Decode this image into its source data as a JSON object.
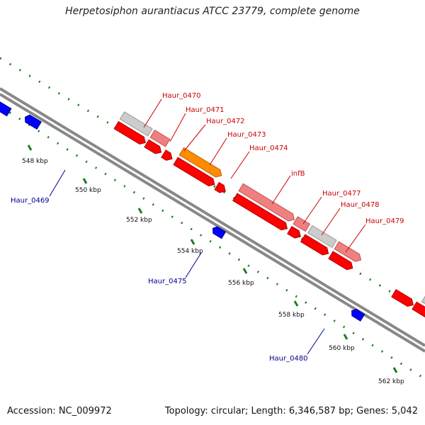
{
  "title": "Herpetosiphon aurantiacus ATCC 23779, complete genome",
  "accession": "Accession: NC_009972",
  "topology": "Topology: circular; Length: 6,346,587 bp; Genes: 5,042",
  "ticks": [
    "548 kbp",
    "550 kbp",
    "552 kbp",
    "554 kbp",
    "556 kbp",
    "558 kbp",
    "560 kbp",
    "562 kbp"
  ],
  "genes": [
    {
      "name": "Haur_0469",
      "label_color": "#00008b",
      "strand": "-",
      "color": "#0000ff"
    },
    {
      "name": "Haur_0470",
      "label_color": "#cc0000",
      "strand": "+",
      "color": "#cccccc"
    },
    {
      "name": "Haur_0471",
      "label_color": "#cc0000",
      "strand": "+",
      "color": "#f08080"
    },
    {
      "name": "Haur_0472",
      "label_color": "#cc0000",
      "strand": "+",
      "color": "#ff0000"
    },
    {
      "name": "Haur_0473",
      "label_color": "#cc0000",
      "strand": "+",
      "color": "#ff8c00"
    },
    {
      "name": "Haur_0474",
      "label_color": "#cc0000",
      "strand": "+",
      "color": "#ff0000"
    },
    {
      "name": "Haur_0475",
      "label_color": "#00008b",
      "strand": "-",
      "color": "#0000ff"
    },
    {
      "name": "infB",
      "label_color": "#cc0000",
      "strand": "+",
      "color": "#f08080"
    },
    {
      "name": "Haur_0477",
      "label_color": "#cc0000",
      "strand": "+",
      "color": "#cccccc"
    },
    {
      "name": "Haur_0478",
      "label_color": "#cc0000",
      "strand": "+",
      "color": "#ff0000"
    },
    {
      "name": "Haur_0479",
      "label_color": "#cc0000",
      "strand": "+",
      "color": "#f08080"
    },
    {
      "name": "Haur_0480",
      "label_color": "#00008b",
      "strand": "-",
      "color": "#0000ff"
    }
  ]
}
